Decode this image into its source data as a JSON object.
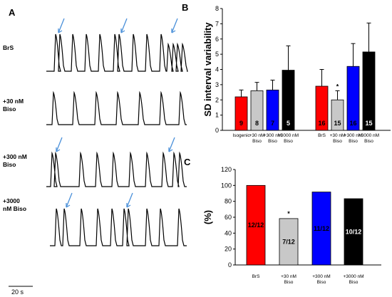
{
  "panels": {
    "a": {
      "letter": "A",
      "traces": [
        {
          "label_lines": [
            "BrS"
          ]
        },
        {
          "label_lines": [
            "+30 nM",
            "Biso"
          ]
        },
        {
          "label_lines": [
            "+300 nM",
            "Biso"
          ]
        },
        {
          "label_lines": [
            "+3000",
            "nM Biso"
          ]
        }
      ],
      "scale_bar_label": "20 s"
    },
    "b": {
      "letter": "B"
    },
    "c": {
      "letter": "C"
    }
  },
  "chart_data": [
    {
      "type": "bar",
      "panel": "B",
      "ylabel": "SD interval variability",
      "ylim": [
        0,
        8
      ],
      "yticks": [
        0,
        1,
        2,
        3,
        4,
        5,
        6,
        7,
        8
      ],
      "groups": [
        {
          "bars": [
            {
              "category": [
                "Isogenic"
              ],
              "value": 2.2,
              "error": 0.45,
              "label": "9",
              "color": "#ff0000",
              "label_color": "#000000",
              "star": ""
            },
            {
              "category": [
                "+30 nM",
                "Biso"
              ],
              "value": 2.6,
              "error": 0.55,
              "label": "8",
              "color": "#c8c8c8",
              "label_color": "#000000",
              "star": ""
            },
            {
              "category": [
                "+300 nM",
                "Biso"
              ],
              "value": 2.65,
              "error": 0.65,
              "label": "7",
              "color": "#0000ff",
              "label_color": "#000000",
              "star": ""
            },
            {
              "category": [
                "+3000 nM",
                "Biso"
              ],
              "value": 3.95,
              "error": 1.6,
              "label": "5",
              "color": "#000000",
              "label_color": "#ffffff",
              "star": ""
            }
          ]
        },
        {
          "bars": [
            {
              "category": [
                "BrS"
              ],
              "value": 2.9,
              "error": 1.1,
              "label": "16",
              "color": "#ff0000",
              "label_color": "#000000",
              "star": ""
            },
            {
              "category": [
                "+30 nM",
                "Biso"
              ],
              "value": 2.0,
              "error": 0.6,
              "label": "15",
              "color": "#c8c8c8",
              "label_color": "#000000",
              "star": "*"
            },
            {
              "category": [
                "+300 nM",
                "Biso"
              ],
              "value": 4.2,
              "error": 1.5,
              "label": "16",
              "color": "#0000ff",
              "label_color": "#000000",
              "star": ""
            },
            {
              "category": [
                "+3000 nM",
                "Biso"
              ],
              "value": 5.15,
              "error": 1.9,
              "label": "15",
              "color": "#000000",
              "label_color": "#ffffff",
              "star": ""
            }
          ]
        }
      ]
    },
    {
      "type": "bar",
      "panel": "C",
      "ylabel": "(%)",
      "ylim": [
        0,
        120
      ],
      "yticks": [
        0,
        20,
        40,
        60,
        80,
        100,
        120
      ],
      "bars": [
        {
          "category": [
            "BrS"
          ],
          "value": 100,
          "label": "12/12",
          "color": "#ff0000",
          "label_color": "#000000",
          "star": ""
        },
        {
          "category": [
            "+30 nM",
            "Biso"
          ],
          "value": 58.3,
          "label": "7/12",
          "color": "#c8c8c8",
          "label_color": "#000000",
          "star": "*"
        },
        {
          "category": [
            "+300 nM",
            "Biso"
          ],
          "value": 91.7,
          "label": "11/12",
          "color": "#0000ff",
          "label_color": "#000000",
          "star": ""
        },
        {
          "category": [
            "+3000 nM",
            "Biso"
          ],
          "value": 83.3,
          "label": "10/12",
          "color": "#000000",
          "label_color": "#ffffff",
          "star": ""
        }
      ]
    }
  ]
}
